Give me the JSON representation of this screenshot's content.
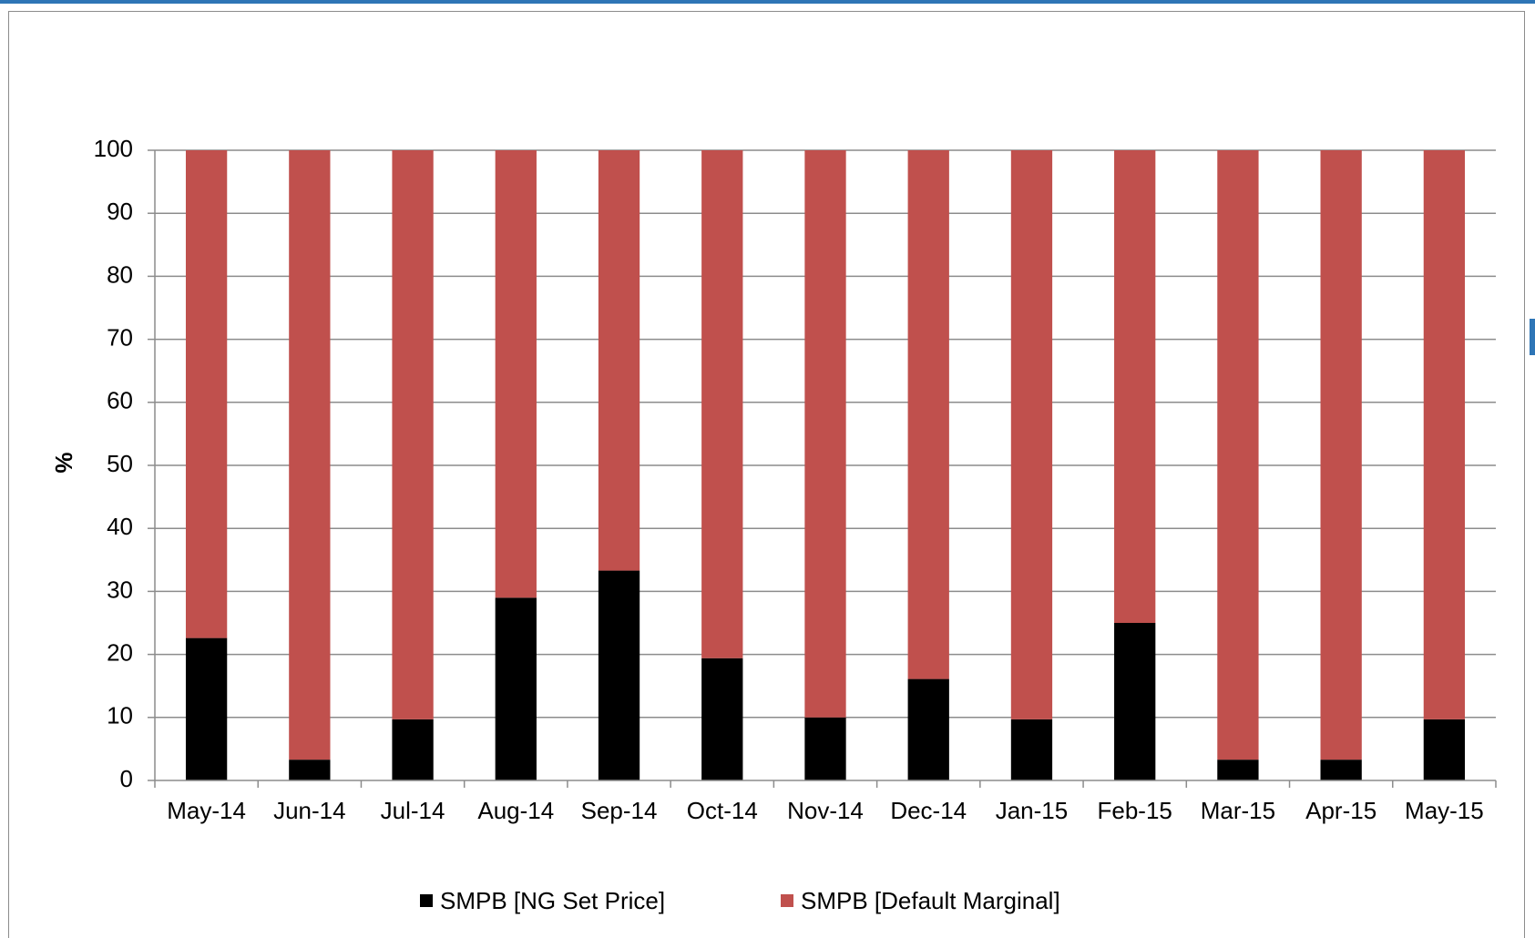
{
  "chart_data": {
    "type": "bar",
    "stacked": true,
    "title": "",
    "xlabel": "",
    "ylabel": "%",
    "ylim": [
      0,
      100
    ],
    "yticks": [
      0,
      10,
      20,
      30,
      40,
      50,
      60,
      70,
      80,
      90,
      100
    ],
    "grid": true,
    "legend_position": "bottom",
    "categories": [
      "May-14",
      "Jun-14",
      "Jul-14",
      "Aug-14",
      "Sep-14",
      "Oct-14",
      "Nov-14",
      "Dec-14",
      "Jan-15",
      "Feb-15",
      "Mar-15",
      "Apr-15",
      "May-15"
    ],
    "series": [
      {
        "name": "SMPB [NG Set Price]",
        "color": "#000000",
        "values": [
          22.6,
          3.3,
          9.7,
          29.0,
          33.3,
          19.4,
          10.0,
          16.1,
          9.7,
          25.0,
          3.3,
          3.3,
          9.7
        ]
      },
      {
        "name": "SMPB [Default Marginal]",
        "color": "#c0504d",
        "values": [
          77.4,
          96.7,
          90.3,
          71.0,
          66.7,
          80.6,
          90.0,
          83.9,
          90.3,
          75.0,
          96.7,
          96.7,
          90.3
        ]
      }
    ]
  },
  "colors": {
    "gridline": "#8c8c8c",
    "axis": "#8c8c8c",
    "accent": "#2e75b6"
  }
}
